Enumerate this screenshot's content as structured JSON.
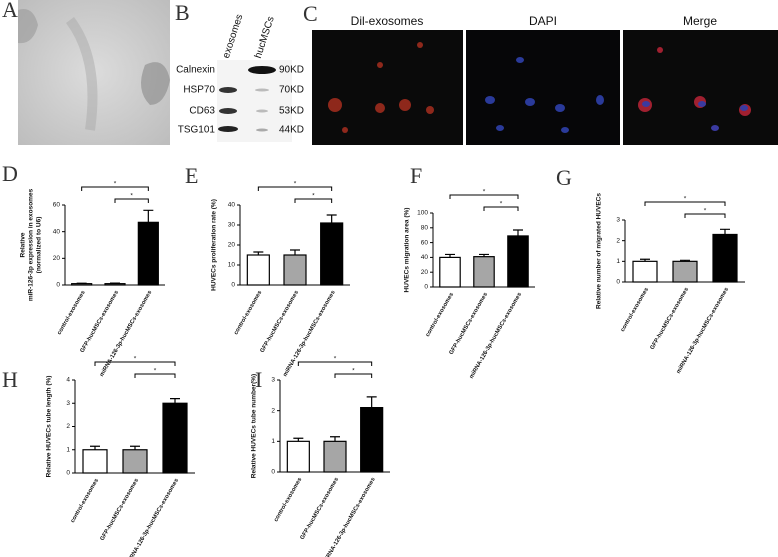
{
  "panel_labels": [
    "A",
    "B",
    "C",
    "D",
    "E",
    "F",
    "G",
    "H",
    "I"
  ],
  "blot": {
    "columns": [
      "exosomes",
      "hucMSCs"
    ],
    "rows": [
      {
        "protein": "Calnexin",
        "size": "90KD"
      },
      {
        "protein": "HSP70",
        "size": "70KD"
      },
      {
        "protein": "CD63",
        "size": "53KD"
      },
      {
        "protein": "TSG101",
        "size": "44KD"
      }
    ]
  },
  "microscopy": {
    "titles": [
      "Dil-exosomes",
      "DAPI",
      "Merge"
    ]
  },
  "chart_data": [
    {
      "type": "bar",
      "ylabel": [
        "Relative",
        "miR-126-3p expression in exosomes",
        "(normalized to U6)"
      ],
      "categories": [
        "control-exosomes",
        "GFP-hucMSCs-exosomes",
        "miRNA-126-3p-hucMSCs-exosomes"
      ],
      "values": [
        1,
        1,
        47
      ],
      "errors": [
        0.3,
        0.4,
        9
      ],
      "colors": [
        "#ffffff",
        "#a6a6a6",
        "#000000"
      ],
      "ylim": [
        0,
        60
      ],
      "yticks": [
        0,
        20,
        40,
        60
      ],
      "significance": [
        {
          "pair": [
            0,
            2
          ],
          "label": "*"
        },
        {
          "pair": [
            1,
            2
          ],
          "label": "*"
        }
      ]
    },
    {
      "type": "bar",
      "ylabel": "HUVECs proliferation rate (%)",
      "categories": [
        "control-exosomes",
        "GFP-hucMSCs-exosomes",
        "miRNA-126-3p-hucMSCs-exosomes"
      ],
      "values": [
        15,
        15,
        31
      ],
      "errors": [
        1.5,
        2.5,
        4
      ],
      "colors": [
        "#ffffff",
        "#a6a6a6",
        "#000000"
      ],
      "ylim": [
        0,
        40
      ],
      "yticks": [
        0,
        10,
        20,
        30,
        40
      ],
      "significance": [
        {
          "pair": [
            0,
            2
          ],
          "label": "*"
        },
        {
          "pair": [
            1,
            2
          ],
          "label": "*"
        }
      ]
    },
    {
      "type": "bar",
      "ylabel": "HUVECs migration area (%)",
      "categories": [
        "control-exosomes",
        "GFP-hucMSCs-exosomes",
        "miRNA-126-3p-hucMSCs-exosomes"
      ],
      "values": [
        40,
        41,
        69
      ],
      "errors": [
        4,
        3,
        8
      ],
      "colors": [
        "#ffffff",
        "#a6a6a6",
        "#000000"
      ],
      "ylim": [
        0,
        100
      ],
      "yticks": [
        0,
        20,
        40,
        60,
        80,
        100
      ],
      "significance": [
        {
          "pair": [
            0,
            2
          ],
          "label": "*"
        },
        {
          "pair": [
            1,
            2
          ],
          "label": "*"
        }
      ]
    },
    {
      "type": "bar",
      "ylabel": "Relative number of migrated  HUVECs",
      "categories": [
        "control-exosomes",
        "GFP-hucMSCs-exosomes",
        "miRNA-126-3p-hucMSCs-exosomes"
      ],
      "values": [
        1.0,
        1.0,
        2.3
      ],
      "errors": [
        0.1,
        0.05,
        0.25
      ],
      "colors": [
        "#ffffff",
        "#a6a6a6",
        "#000000"
      ],
      "ylim": [
        0,
        3
      ],
      "yticks": [
        0,
        1,
        2,
        3
      ],
      "significance": [
        {
          "pair": [
            0,
            2
          ],
          "label": "*"
        },
        {
          "pair": [
            1,
            2
          ],
          "label": "*"
        }
      ]
    },
    {
      "type": "bar",
      "ylabel": "Relative HUVECs tube length (%)",
      "categories": [
        "control-exosomes",
        "GFP-hucMSCs-exosomes",
        "miRNA-126-3p-hucMSCs-exosomes"
      ],
      "values": [
        1.0,
        1.0,
        3.0
      ],
      "errors": [
        0.15,
        0.15,
        0.2
      ],
      "colors": [
        "#ffffff",
        "#a6a6a6",
        "#000000"
      ],
      "ylim": [
        0,
        4
      ],
      "yticks": [
        0,
        1,
        2,
        3,
        4
      ],
      "significance": [
        {
          "pair": [
            0,
            2
          ],
          "label": "*"
        },
        {
          "pair": [
            1,
            2
          ],
          "label": "*"
        }
      ]
    },
    {
      "type": "bar",
      "ylabel": "Relative  HUVECs tube number(%)",
      "categories": [
        "control-exosomes",
        "GFP-hucMSCs-exosomes",
        "miRNA-126-3p-hucMSCs-exosomes"
      ],
      "values": [
        1.0,
        1.0,
        2.1
      ],
      "errors": [
        0.1,
        0.15,
        0.35
      ],
      "colors": [
        "#ffffff",
        "#a6a6a6",
        "#000000"
      ],
      "ylim": [
        0,
        3
      ],
      "yticks": [
        0,
        1,
        2,
        3
      ],
      "significance": [
        {
          "pair": [
            0,
            2
          ],
          "label": "*"
        },
        {
          "pair": [
            1,
            2
          ],
          "label": "*"
        }
      ]
    }
  ]
}
